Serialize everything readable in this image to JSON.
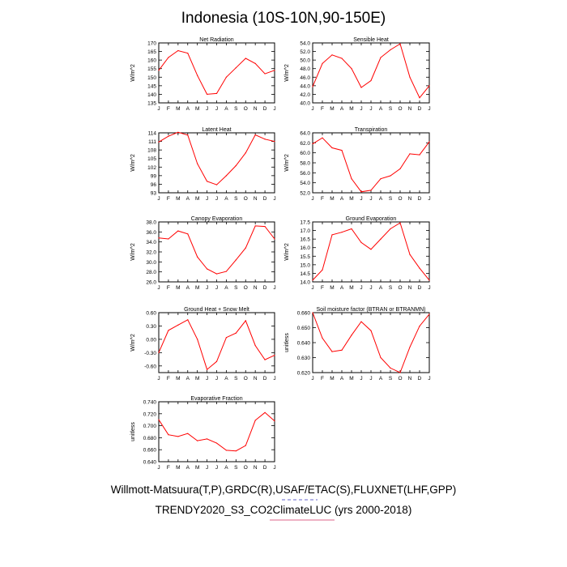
{
  "figure": {
    "title": "Indonesia (10S-10N,90-150E)",
    "credit_line_1": "Willmott-Matsuura(T,P),GRDC(R),USAF/ETAC(S),FLUXNET(LHF,GPP)",
    "credit_line_2": "TRENDY2020_S3_CO2ClimateLUC (yrs 2000-2018)",
    "credit_underline_1_color": "#6666cc",
    "credit_underline_2_color": "#dd6688",
    "line_color": "#ff0000"
  },
  "chart_data": [
    {
      "type": "line",
      "title": "Net Radiation",
      "ylabel": "W/m^2",
      "x": [
        "J",
        "F",
        "M",
        "A",
        "M",
        "J",
        "J",
        "A",
        "S",
        "O",
        "N",
        "D",
        "J"
      ],
      "values": [
        154,
        161.5,
        165.5,
        164,
        151,
        140,
        140.5,
        150,
        155.5,
        161,
        158,
        152,
        154
      ],
      "ylim": [
        135,
        170
      ],
      "yticks": [
        "135",
        "140",
        "145",
        "150",
        "155",
        "160",
        "165",
        "170"
      ]
    },
    {
      "type": "line",
      "title": "Sensible Heat",
      "ylabel": "W/m^2",
      "x": [
        "J",
        "F",
        "M",
        "A",
        "M",
        "J",
        "J",
        "A",
        "S",
        "O",
        "N",
        "D",
        "J"
      ],
      "values": [
        43.8,
        49.2,
        51.2,
        50.4,
        48,
        43.6,
        45.2,
        50.6,
        52.4,
        53.8,
        46,
        41.2,
        44
      ],
      "ylim": [
        40,
        54
      ],
      "yticks": [
        "40.0",
        "42.0",
        "44.0",
        "46.0",
        "48.0",
        "50.0",
        "52.0",
        "54.0"
      ]
    },
    {
      "type": "line",
      "title": "Latent Heat",
      "ylabel": "W/m^2",
      "x": [
        "J",
        "F",
        "M",
        "A",
        "M",
        "J",
        "J",
        "A",
        "S",
        "O",
        "N",
        "D",
        "J"
      ],
      "values": [
        110.8,
        112.8,
        114.2,
        113.2,
        103.2,
        97,
        95.8,
        99,
        102.5,
        107,
        113.3,
        111.8,
        111
      ],
      "ylim": [
        93,
        114
      ],
      "yticks": [
        "93",
        "96",
        "99",
        "102",
        "105",
        "108",
        "111",
        "114"
      ]
    },
    {
      "type": "line",
      "title": "Transpiration",
      "ylabel": "W/m^2",
      "x": [
        "J",
        "F",
        "M",
        "A",
        "M",
        "J",
        "J",
        "A",
        "S",
        "O",
        "N",
        "D",
        "J"
      ],
      "values": [
        61.8,
        63,
        61,
        60.5,
        54.8,
        52.2,
        52.5,
        54.8,
        55.4,
        56.8,
        59.8,
        59.6,
        62.2
      ],
      "ylim": [
        52,
        64
      ],
      "yticks": [
        "52.0",
        "54.0",
        "56.0",
        "58.0",
        "60.0",
        "62.0",
        "64.0"
      ]
    },
    {
      "type": "line",
      "title": "Canopy Evaporation",
      "ylabel": "W/m^2",
      "x": [
        "J",
        "F",
        "M",
        "A",
        "M",
        "J",
        "J",
        "A",
        "S",
        "O",
        "N",
        "D",
        "J"
      ],
      "values": [
        34.8,
        34.6,
        36.2,
        35.6,
        31,
        28.6,
        27.6,
        28.1,
        30.4,
        32.8,
        37.2,
        37.1,
        34.6
      ],
      "ylim": [
        26,
        38
      ],
      "yticks": [
        "26.0",
        "28.0",
        "30.0",
        "32.0",
        "34.0",
        "36.0",
        "38.0"
      ]
    },
    {
      "type": "line",
      "title": "Ground Evaporation",
      "ylabel": "W/m^2",
      "x": [
        "J",
        "F",
        "M",
        "A",
        "M",
        "J",
        "J",
        "A",
        "S",
        "O",
        "N",
        "D",
        "J"
      ],
      "values": [
        14.1,
        14.7,
        16.75,
        16.9,
        17.1,
        16.3,
        15.9,
        16.5,
        17.1,
        17.45,
        15.6,
        14.8,
        14.1
      ],
      "ylim": [
        14,
        17.5
      ],
      "yticks": [
        "14.0",
        "14.5",
        "15.0",
        "15.5",
        "16.0",
        "16.5",
        "17.0",
        "17.5"
      ]
    },
    {
      "type": "line",
      "title": "Ground Heat + Snow Melt",
      "ylabel": "W/m^2",
      "x": [
        "J",
        "F",
        "M",
        "A",
        "M",
        "J",
        "J",
        "A",
        "S",
        "O",
        "N",
        "D",
        "J"
      ],
      "values": [
        -0.3,
        0.2,
        0.32,
        0.44,
        0,
        -0.68,
        -0.5,
        0.04,
        0.14,
        0.42,
        -0.14,
        -0.46,
        -0.36
      ],
      "ylim": [
        -0.75,
        0.6
      ],
      "yticks": [
        "-0.60",
        "-0.30",
        "0.00",
        "0.30",
        "0.60"
      ]
    },
    {
      "type": "line",
      "title": "Soil moisture factor (BTRAN or BTRANMN)",
      "ylabel": "unitless",
      "x": [
        "J",
        "F",
        "M",
        "A",
        "M",
        "J",
        "J",
        "A",
        "S",
        "O",
        "N",
        "D",
        "J"
      ],
      "values": [
        0.66,
        0.643,
        0.634,
        0.635,
        0.645,
        0.654,
        0.648,
        0.63,
        0.623,
        0.62,
        0.637,
        0.651,
        0.659
      ],
      "ylim": [
        0.62,
        0.66
      ],
      "yticks": [
        "0.620",
        "0.630",
        "0.640",
        "0.650",
        "0.660"
      ]
    },
    {
      "type": "line",
      "title": "Evaporative Fraction",
      "ylabel": "unitless",
      "x": [
        "J",
        "F",
        "M",
        "A",
        "M",
        "J",
        "J",
        "A",
        "S",
        "O",
        "N",
        "D",
        "J"
      ],
      "values": [
        0.71,
        0.685,
        0.682,
        0.687,
        0.675,
        0.678,
        0.671,
        0.659,
        0.658,
        0.667,
        0.709,
        0.722,
        0.708
      ],
      "ylim": [
        0.64,
        0.74
      ],
      "yticks": [
        "0.640",
        "0.660",
        "0.680",
        "0.700",
        "0.720",
        "0.740"
      ]
    }
  ]
}
